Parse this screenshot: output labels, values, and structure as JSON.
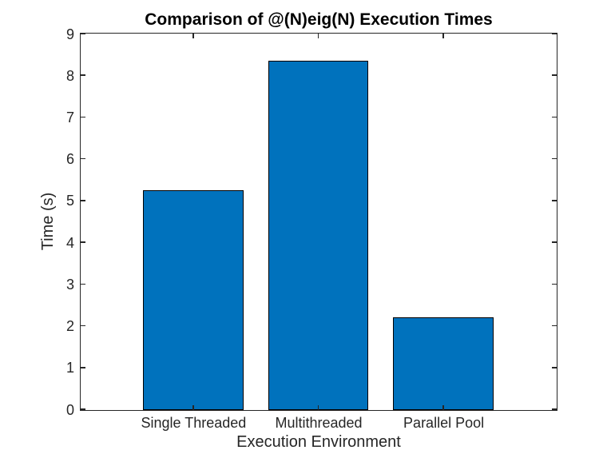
{
  "figure": {
    "background": "#ffffff"
  },
  "chart_data": {
    "type": "bar",
    "title": "Comparison of @(N)eig(N) Execution Times",
    "xlabel": "Execution Environment",
    "ylabel": "Time (s)",
    "categories": [
      "Single Threaded",
      "Multithreaded",
      "Parallel Pool"
    ],
    "values": [
      5.27,
      8.37,
      2.23
    ],
    "x_positions": [
      1,
      2,
      3
    ],
    "xlim": [
      0.1,
      3.9
    ],
    "ylim": [
      0,
      9
    ],
    "yticks": [
      0,
      1,
      2,
      3,
      4,
      5,
      6,
      7,
      8,
      9
    ],
    "bar_width": 0.8,
    "bar_face_color": "#0072BD",
    "bar_edge_color": "#000000",
    "axis_color": "#262626",
    "text_color": "#262626",
    "grid": "off",
    "legend": "none",
    "box": "on",
    "tick_dir": "in"
  }
}
